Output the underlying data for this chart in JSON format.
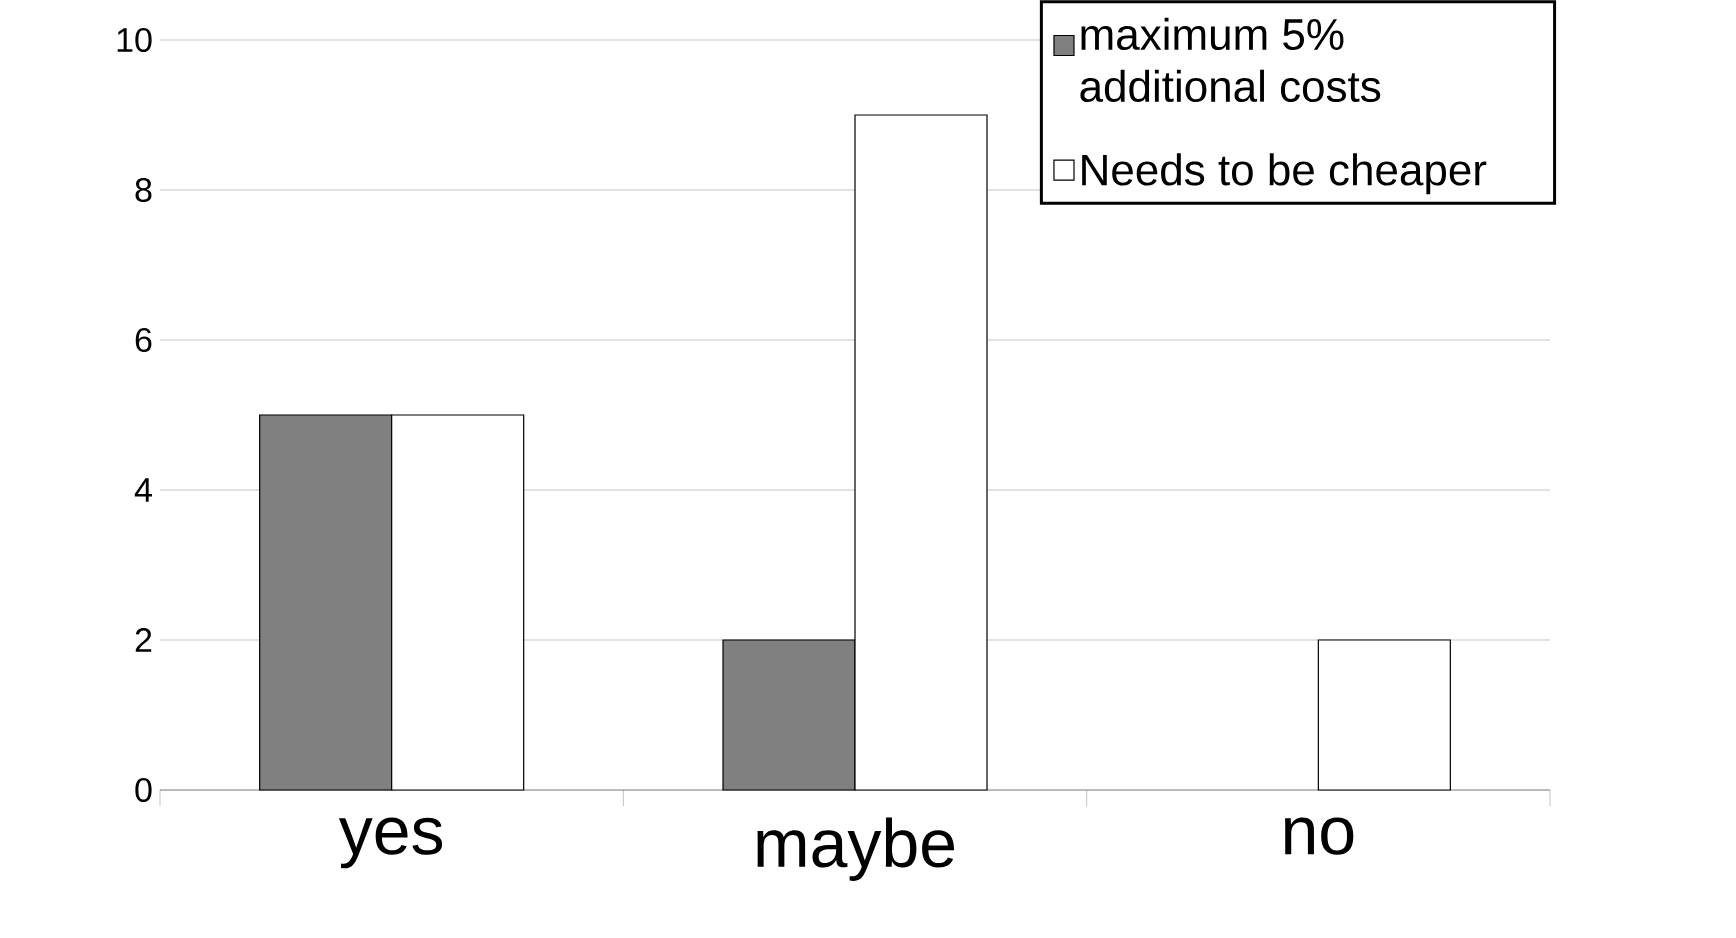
{
  "chart_data": {
    "type": "bar",
    "categories": [
      "yes",
      "maybe",
      "no"
    ],
    "series": [
      {
        "name": "maximum 5% additional costs",
        "color": "#808080",
        "values": [
          5,
          2,
          0
        ]
      },
      {
        "name": "Needs to be cheaper",
        "color": "#ffffff",
        "values": [
          5,
          9,
          2
        ]
      }
    ],
    "ylim": [
      0,
      10
    ],
    "yticks": [
      0,
      2,
      4,
      6,
      8,
      10
    ],
    "grid": "y",
    "legend": "top right"
  }
}
